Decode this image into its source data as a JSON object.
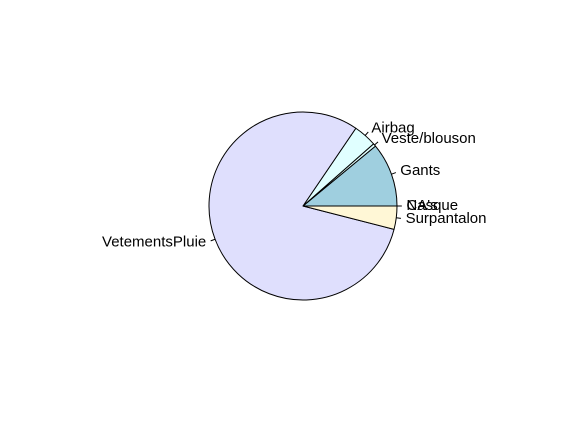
{
  "chart_data": {
    "type": "pie",
    "title": "",
    "start_angle_deg": 0,
    "direction": "counterclockwise",
    "slices": [
      {
        "label": "Casque",
        "value": 0.0,
        "color": "#ffffff"
      },
      {
        "label": "Gants",
        "value": 11.0,
        "color": "#9fcfdf"
      },
      {
        "label": "Veste/blouson",
        "value": 0.5,
        "color": "#e0ffff"
      },
      {
        "label": "Airbag",
        "value": 4.0,
        "color": "#e0ffff"
      },
      {
        "label": "VetementsPluie",
        "value": 80.5,
        "color": "#dfdffd"
      },
      {
        "label": "Surpantalon",
        "value": 4.0,
        "color": "#fff7d6"
      },
      {
        "label": "NA's",
        "value": 0.0,
        "color": "#ffffff"
      }
    ]
  }
}
